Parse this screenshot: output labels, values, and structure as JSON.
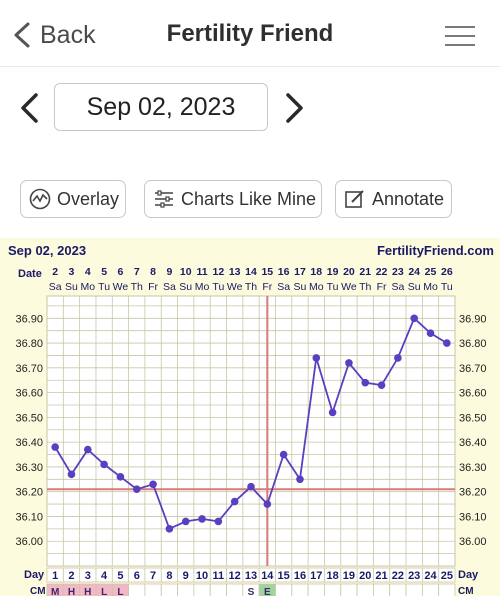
{
  "nav": {
    "back_label": "Back",
    "title": "Fertility Friend",
    "menu_icon": "list-menu-icon"
  },
  "date_nav": {
    "current_date": "Sep 02, 2023",
    "prev_icon": "chevron-left-icon",
    "next_icon": "chevron-right-icon"
  },
  "toolbar": {
    "overlay_label": "Overlay",
    "charts_like_mine_label": "Charts Like Mine",
    "annotate_label": "Annotate"
  },
  "chart_header": {
    "start_date": "Sep 02, 2023",
    "brand": "FertilityFriend.com",
    "date_label": "Date",
    "day_label": "Day",
    "cm_label": "CM"
  },
  "colors": {
    "line": "#5a3fc0",
    "coverline": "#d97a7a",
    "grid": "#c9c6a6",
    "chart_bg": "#fcfbdd",
    "menstruation_cell": "#f2b8c6",
    "egg_white_cell": "#9fd39f"
  },
  "chart_data": {
    "type": "line",
    "title": "",
    "xlabel": "Day",
    "ylabel": "",
    "ylim": [
      35.9,
      36.99
    ],
    "yticks": [
      "36.90",
      "36.80",
      "36.70",
      "36.60",
      "36.50",
      "36.40",
      "36.30",
      "36.20",
      "36.10",
      "36.00"
    ],
    "dates": [
      "2",
      "3",
      "4",
      "5",
      "6",
      "7",
      "8",
      "9",
      "10",
      "11",
      "12",
      "13",
      "14",
      "15",
      "16",
      "17",
      "18",
      "19",
      "20",
      "21",
      "22",
      "23",
      "24",
      "25",
      "26"
    ],
    "weekdays": [
      "Sa",
      "Su",
      "Mo",
      "Tu",
      "We",
      "Th",
      "Fr",
      "Sa",
      "Su",
      "Mo",
      "Tu",
      "We",
      "Th",
      "Fr",
      "Sa",
      "Su",
      "Mo",
      "Tu",
      "We",
      "Th",
      "Fr",
      "Sa",
      "Su",
      "Mo",
      "Tu"
    ],
    "days": [
      "1",
      "2",
      "3",
      "4",
      "5",
      "6",
      "7",
      "8",
      "9",
      "10",
      "11",
      "12",
      "13",
      "14",
      "15",
      "16",
      "17",
      "18",
      "19",
      "20",
      "21",
      "22",
      "23",
      "24",
      "25"
    ],
    "temperatures": [
      36.38,
      36.27,
      36.37,
      36.31,
      36.26,
      36.21,
      36.23,
      36.05,
      36.08,
      36.09,
      36.08,
      36.16,
      36.22,
      36.15,
      36.35,
      36.25,
      36.74,
      36.52,
      36.72,
      36.64,
      36.63,
      36.74,
      36.9,
      36.84,
      36.8
    ],
    "coverline": 36.21,
    "ovulation_day": 14,
    "cm": [
      "M",
      "H",
      "H",
      "L",
      "L",
      "",
      "",
      "",
      "",
      "",
      "",
      "",
      "S",
      "E",
      "",
      "",
      "",
      "",
      "",
      "",
      "",
      "",
      "",
      "",
      ""
    ],
    "grid": true
  }
}
